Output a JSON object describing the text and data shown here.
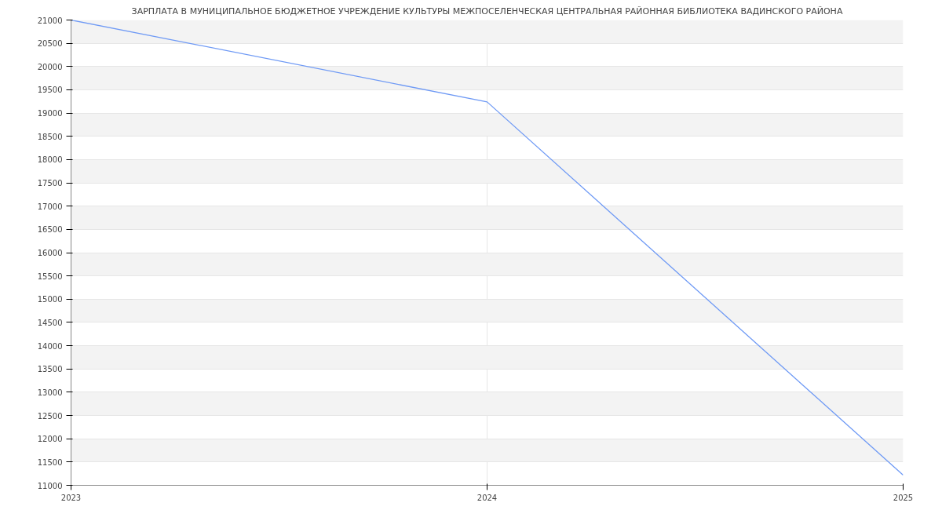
{
  "chart_data": {
    "type": "line",
    "title": "ЗАРПЛАТА В МУНИЦИПАЛЬНОЕ БЮДЖЕТНОЕ УЧРЕЖДЕНИЕ КУЛЬТУРЫ МЕЖПОСЕЛЕНЧЕСКАЯ ЦЕНТРАЛЬНАЯ РАЙОННАЯ БИБЛИОТЕКА ВАДИНСКОГО РАЙОНА",
    "x": [
      2023,
      2024,
      2025
    ],
    "series": [
      {
        "color": "#6f9af5",
        "values": [
          21000,
          19240,
          11220
        ]
      }
    ],
    "xlim": [
      2023,
      2025
    ],
    "xticks": [
      2023,
      2024,
      2025
    ],
    "ylim": [
      11000,
      21000
    ],
    "yticks": [
      11000,
      11500,
      12000,
      12500,
      13000,
      13500,
      14000,
      14500,
      15000,
      15500,
      16000,
      16500,
      17000,
      17500,
      18000,
      18500,
      19000,
      19500,
      20000,
      20500,
      21000
    ],
    "grid": true,
    "marker": "none",
    "line_style": "solid"
  }
}
